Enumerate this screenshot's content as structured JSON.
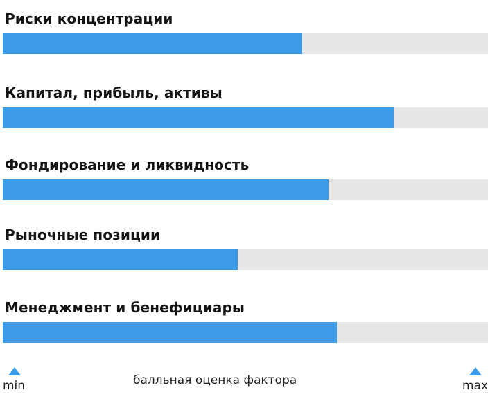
{
  "colors": {
    "fill": "#3c9be9",
    "track": "#e6e6e6"
  },
  "chart_data": {
    "type": "bar",
    "orientation": "horizontal",
    "categories": [
      "Риски концентрации",
      "Капитал, прибыль, активы",
      "Фондирование и ликвидность",
      "Рыночные позиции",
      "Менеджмент и бенефициары"
    ],
    "values": [
      0.617,
      0.806,
      0.671,
      0.484,
      0.689
    ],
    "xlim": [
      0,
      1
    ],
    "scale_min_label": "min",
    "scale_max_label": "max",
    "xlabel": "балльная оценка фактора",
    "grid": false
  }
}
